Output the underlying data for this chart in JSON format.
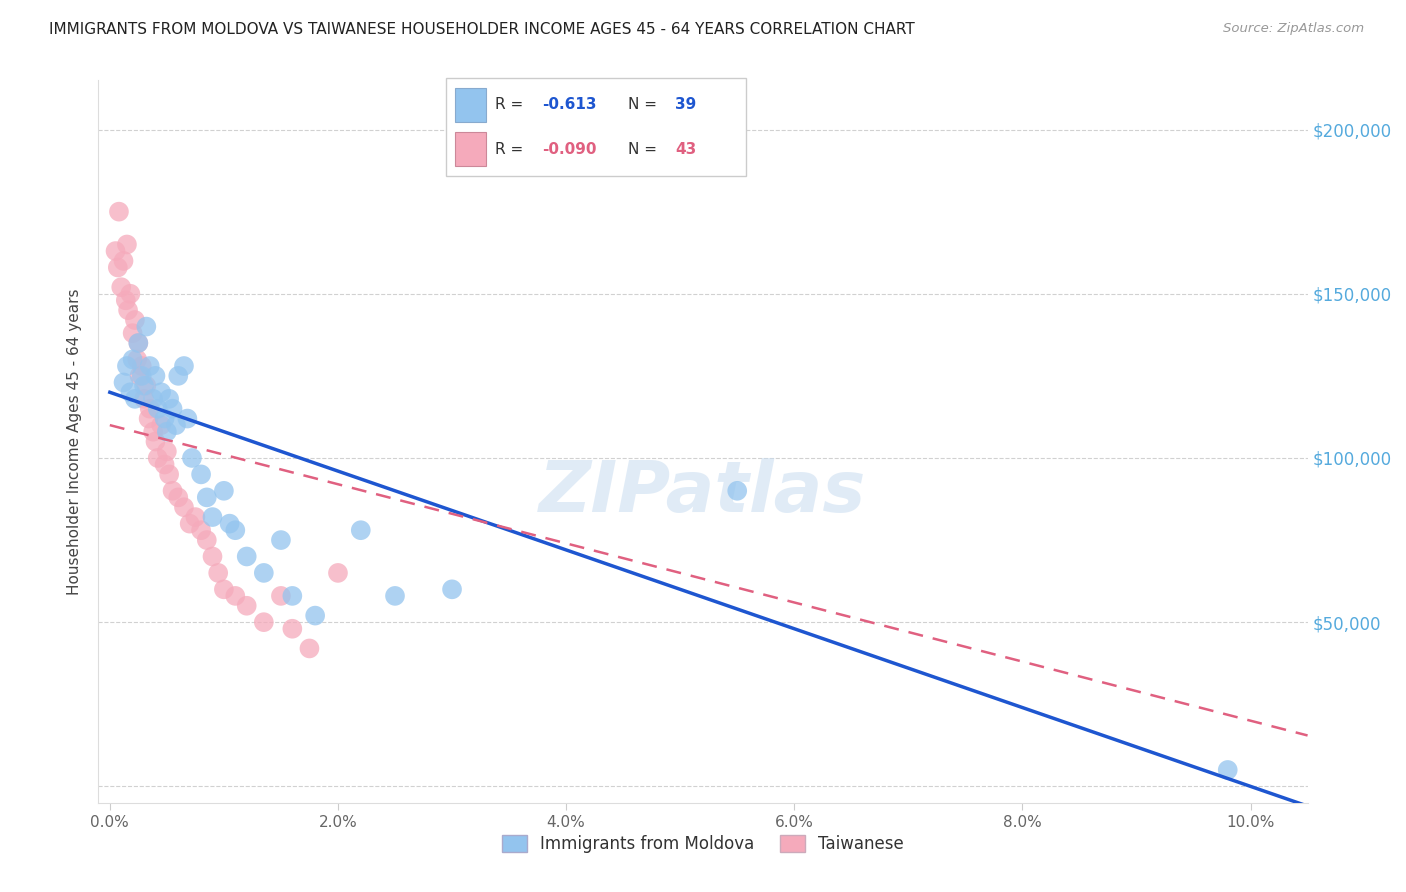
{
  "title": "IMMIGRANTS FROM MOLDOVA VS TAIWANESE HOUSEHOLDER INCOME AGES 45 - 64 YEARS CORRELATION CHART",
  "source": "Source: ZipAtlas.com",
  "ylabel": "Householder Income Ages 45 - 64 years",
  "xlabel_vals": [
    0.0,
    2.0,
    4.0,
    6.0,
    8.0,
    10.0
  ],
  "ylabel_vals": [
    0,
    50000,
    100000,
    150000,
    200000
  ],
  "ylabel_labels": [
    "",
    "$50,000",
    "$100,000",
    "$150,000",
    "$200,000"
  ],
  "xlim": [
    -0.1,
    10.5
  ],
  "ylim": [
    -5000,
    215000
  ],
  "background_color": "#ffffff",
  "grid_color": "#cccccc",
  "legend_R1": "-0.613",
  "legend_N1": "39",
  "legend_R2": "-0.090",
  "legend_N2": "43",
  "blue_color": "#93C4EE",
  "pink_color": "#F5AABB",
  "blue_line_color": "#1E56D0",
  "pink_line_color": "#E06080",
  "ylabel_color": "#55AADD",
  "title_color": "#222222",
  "legend_label1": "Immigrants from Moldova",
  "legend_label2": "Taiwanese",
  "moldova_x": [
    0.12,
    0.15,
    0.18,
    0.2,
    0.22,
    0.25,
    0.28,
    0.3,
    0.32,
    0.35,
    0.38,
    0.4,
    0.42,
    0.45,
    0.48,
    0.5,
    0.52,
    0.55,
    0.58,
    0.6,
    0.65,
    0.68,
    0.72,
    0.8,
    0.85,
    0.9,
    1.0,
    1.05,
    1.1,
    1.2,
    1.35,
    1.5,
    1.6,
    1.8,
    2.2,
    2.5,
    3.0,
    5.5,
    9.8
  ],
  "moldova_y": [
    123000,
    128000,
    120000,
    130000,
    118000,
    135000,
    125000,
    122000,
    140000,
    128000,
    118000,
    125000,
    115000,
    120000,
    112000,
    108000,
    118000,
    115000,
    110000,
    125000,
    128000,
    112000,
    100000,
    95000,
    88000,
    82000,
    90000,
    80000,
    78000,
    70000,
    65000,
    75000,
    58000,
    52000,
    78000,
    58000,
    60000,
    90000,
    5000
  ],
  "taiwanese_x": [
    0.05,
    0.07,
    0.08,
    0.1,
    0.12,
    0.14,
    0.15,
    0.16,
    0.18,
    0.2,
    0.22,
    0.24,
    0.25,
    0.26,
    0.28,
    0.3,
    0.32,
    0.34,
    0.35,
    0.38,
    0.4,
    0.42,
    0.45,
    0.48,
    0.5,
    0.52,
    0.55,
    0.6,
    0.65,
    0.7,
    0.75,
    0.8,
    0.85,
    0.9,
    0.95,
    1.0,
    1.1,
    1.2,
    1.35,
    1.5,
    1.6,
    1.75,
    2.0
  ],
  "taiwanese_y": [
    163000,
    158000,
    175000,
    152000,
    160000,
    148000,
    165000,
    145000,
    150000,
    138000,
    142000,
    130000,
    135000,
    125000,
    128000,
    118000,
    122000,
    112000,
    115000,
    108000,
    105000,
    100000,
    110000,
    98000,
    102000,
    95000,
    90000,
    88000,
    85000,
    80000,
    82000,
    78000,
    75000,
    70000,
    65000,
    60000,
    58000,
    55000,
    50000,
    58000,
    48000,
    42000,
    65000
  ]
}
